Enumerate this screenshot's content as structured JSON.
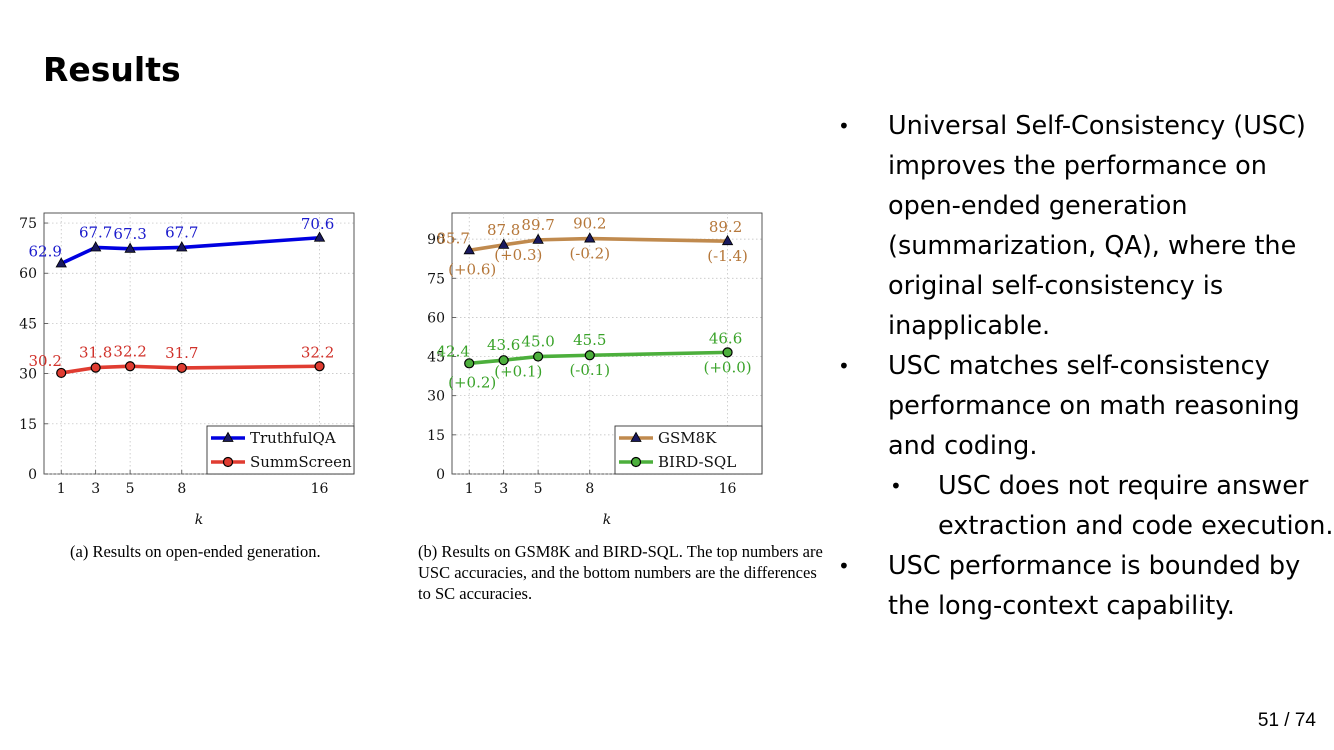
{
  "slide": {
    "title": "Results",
    "page": "51 / 74",
    "bullets": [
      {
        "text": "Universal Self-Consistency (USC) improves the performance on open-ended generation (summarization, QA), where the original self-consistency is inapplicable.",
        "level": 1
      },
      {
        "text": "USC matches self-consistency performance on math reasoning and coding.",
        "level": 1
      },
      {
        "text": "USC does not require answer extraction and code execution.",
        "level": 2
      },
      {
        "text": "USC performance is bounded by the long-context capability.",
        "level": 1
      }
    ]
  },
  "chart_data": [
    {
      "type": "line",
      "caption": "(a) Results on open-ended generation.",
      "xlabel": "k",
      "x": [
        1,
        3,
        5,
        8,
        16
      ],
      "xticks": [
        "1",
        "3",
        "5",
        "8",
        "16"
      ],
      "ylim": [
        0,
        78
      ],
      "yticks": [
        "0",
        "15",
        "30",
        "45",
        "60",
        "75"
      ],
      "grid": true,
      "legend_position": "bottom-right",
      "series": [
        {
          "name": "TruthfulQA",
          "values": [
            62.9,
            67.7,
            67.3,
            67.7,
            70.6
          ],
          "labels": [
            "62.9",
            "67.7",
            "67.3",
            "67.7",
            "70.6"
          ],
          "color": "#0000e0",
          "label_color": "#1a1acc",
          "marker": "triangle"
        },
        {
          "name": "SummScreen",
          "values": [
            30.2,
            31.8,
            32.2,
            31.7,
            32.2
          ],
          "labels": [
            "30.2",
            "31.8",
            "32.2",
            "31.7",
            "32.2"
          ],
          "color": "#e03c31",
          "label_color": "#d0312a",
          "marker": "circle"
        }
      ]
    },
    {
      "type": "line",
      "caption": "(b) Results on GSM8K and BIRD-SQL. The top numbers are USC accuracies, and the bottom numbers are the differences to SC accuracies.",
      "xlabel": "k",
      "x": [
        1,
        3,
        5,
        8,
        16
      ],
      "xticks": [
        "1",
        "3",
        "5",
        "8",
        "16"
      ],
      "ylim": [
        0,
        100
      ],
      "yticks": [
        "0",
        "15",
        "30",
        "45",
        "60",
        "75",
        "90"
      ],
      "grid": true,
      "legend_position": "bottom-right",
      "series": [
        {
          "name": "GSM8K",
          "values": [
            85.7,
            87.8,
            89.7,
            90.2,
            89.2
          ],
          "labels": [
            "85.7",
            "87.8",
            "89.7",
            "90.2",
            "89.2"
          ],
          "diffs": [
            "(+0.6)",
            "(+0.3)",
            "(-0.2)",
            "(-1.4)"
          ],
          "color": "#c08a4e",
          "label_color": "#b5773a",
          "marker": "triangle"
        },
        {
          "name": "BIRD-SQL",
          "values": [
            42.4,
            43.6,
            45.0,
            45.5,
            46.6
          ],
          "labels": [
            "42.4",
            "43.6",
            "45.0",
            "45.5",
            "46.6"
          ],
          "diffs": [
            "(+0.2)",
            "(+0.1)",
            "(-0.1)",
            "(+0.0)"
          ],
          "color": "#4caf3c",
          "label_color": "#3aa32a",
          "marker": "circle"
        }
      ]
    }
  ]
}
